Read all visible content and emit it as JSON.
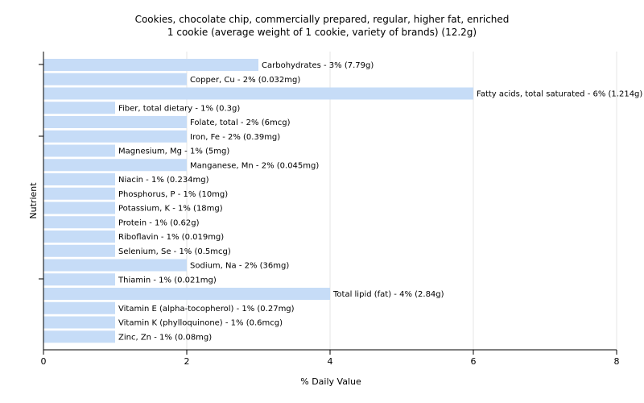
{
  "chart_data": {
    "type": "bar",
    "orientation": "horizontal",
    "title": "Cookies, chocolate chip, commercially prepared, regular, higher fat, enriched",
    "subtitle": "1 cookie (average weight of 1 cookie, variety of brands) (12.2g)",
    "xlabel": "% Daily Value",
    "ylabel": "Nutrient",
    "xlim": [
      0,
      8
    ],
    "xticks": [
      "0",
      "2",
      "4",
      "6",
      "8"
    ],
    "grid": "vertical",
    "bar_color": "#c6dcf7",
    "categories": [
      "Carbohydrates",
      "Copper, Cu",
      "Fatty acids, total saturated",
      "Fiber, total dietary",
      "Folate, total",
      "Iron, Fe",
      "Magnesium, Mg",
      "Manganese, Mn",
      "Niacin",
      "Phosphorus, P",
      "Potassium, K",
      "Protein",
      "Riboflavin",
      "Selenium, Se",
      "Sodium, Na",
      "Thiamin",
      "Total lipid (fat)",
      "Vitamin E (alpha-tocopherol)",
      "Vitamin K (phylloquinone)",
      "Zinc, Zn"
    ],
    "values": [
      3,
      2,
      6,
      1,
      2,
      2,
      1,
      2,
      1,
      1,
      1,
      1,
      1,
      1,
      2,
      1,
      4,
      1,
      1,
      1
    ],
    "labels": [
      "Carbohydrates - 3% (7.79g)",
      "Copper, Cu - 2% (0.032mg)",
      "Fatty acids, total saturated - 6% (1.214g)",
      "Fiber, total dietary - 1% (0.3g)",
      "Folate, total - 2% (6mcg)",
      "Iron, Fe - 2% (0.39mg)",
      "Magnesium, Mg - 1% (5mg)",
      "Manganese, Mn - 2% (0.045mg)",
      "Niacin - 1% (0.234mg)",
      "Phosphorus, P - 1% (10mg)",
      "Potassium, K - 1% (18mg)",
      "Protein - 1% (0.62g)",
      "Riboflavin - 1% (0.019mg)",
      "Selenium, Se - 1% (0.5mcg)",
      "Sodium, Na - 2% (36mg)",
      "Thiamin - 1% (0.021mg)",
      "Total lipid (fat) - 4% (2.84g)",
      "Vitamin E (alpha-tocopherol) - 1% (0.27mg)",
      "Vitamin K (phylloquinone) - 1% (0.6mcg)",
      "Zinc, Zn - 1% (0.08mg)"
    ]
  }
}
